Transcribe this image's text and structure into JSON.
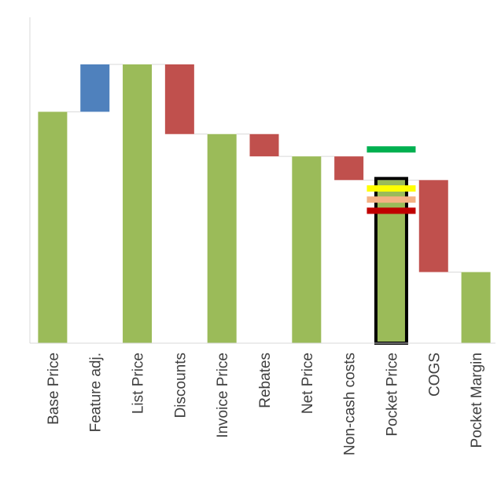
{
  "chart_data": {
    "type": "bar",
    "subtype": "waterfall",
    "title": "",
    "xlabel": "",
    "ylabel": "",
    "ylim": [
      0,
      100
    ],
    "grid": false,
    "legend": "none",
    "categories": [
      "Base Price",
      "Feature adj.",
      "List Price",
      "Discounts",
      "Invoice Price",
      "Rebates",
      "Net Price",
      "Non-cash costs",
      "Pocket Price",
      "COGS",
      "Pocket Margin"
    ],
    "bars": [
      {
        "category": "Base Price",
        "kind": "total",
        "from": 0,
        "to": 83,
        "color": "#9BBB59"
      },
      {
        "category": "Feature adj.",
        "kind": "increase",
        "from": 83,
        "to": 100,
        "color": "#4F81BD"
      },
      {
        "category": "List Price",
        "kind": "total",
        "from": 0,
        "to": 100,
        "color": "#9BBB59"
      },
      {
        "category": "Discounts",
        "kind": "decrease",
        "from": 100,
        "to": 75,
        "color": "#C0504D"
      },
      {
        "category": "Invoice Price",
        "kind": "total",
        "from": 0,
        "to": 75,
        "color": "#9BBB59"
      },
      {
        "category": "Rebates",
        "kind": "decrease",
        "from": 75,
        "to": 67,
        "color": "#C0504D"
      },
      {
        "category": "Net Price",
        "kind": "total",
        "from": 0,
        "to": 67,
        "color": "#9BBB59"
      },
      {
        "category": "Non-cash costs",
        "kind": "decrease",
        "from": 67,
        "to": 58.5,
        "color": "#C0504D"
      },
      {
        "category": "Pocket Price",
        "kind": "total",
        "from": 0,
        "to": 58.5,
        "color": "#9BBB59",
        "highlight": true
      },
      {
        "category": "COGS",
        "kind": "decrease",
        "from": 58.5,
        "to": 25.5,
        "color": "#C0504D"
      },
      {
        "category": "Pocket Margin",
        "kind": "total",
        "from": 0,
        "to": 25.5,
        "color": "#9BBB59"
      }
    ],
    "markers": [
      {
        "category": "Pocket Price",
        "value": 69.5,
        "color": "#00B050"
      },
      {
        "category": "Pocket Price",
        "value": 55.5,
        "color": "#FFFF00"
      },
      {
        "category": "Pocket Price",
        "value": 51.5,
        "color": "#F4B183"
      },
      {
        "category": "Pocket Price",
        "value": 47.5,
        "color": "#C00000"
      }
    ],
    "colors": {
      "total": "#9BBB59",
      "increase": "#4F81BD",
      "decrease": "#C0504D",
      "connector": "#D9D9D9",
      "axis": "#D9D9D9",
      "highlight_outline": "#000000"
    }
  }
}
